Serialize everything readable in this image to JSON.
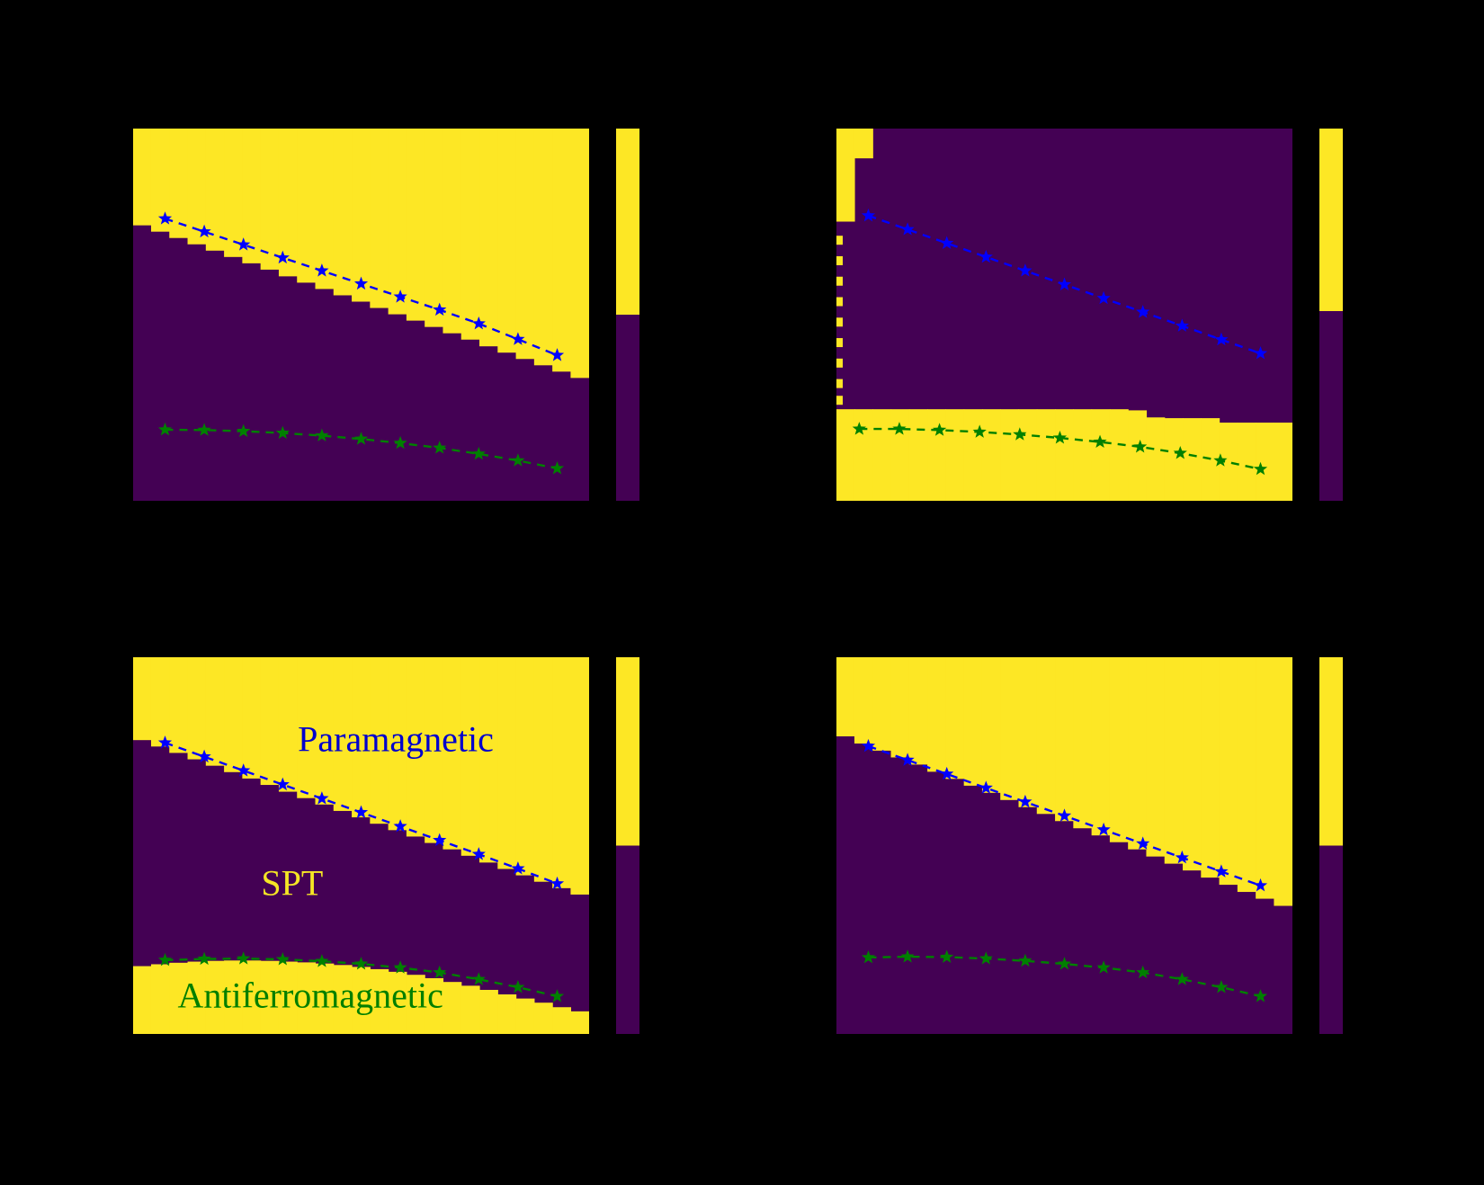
{
  "figure": {
    "background": "#000000"
  },
  "palette": {
    "region_high": "#fde725",
    "region_low": "#440154",
    "upper_line": "#0000ff",
    "lower_line": "#008000"
  },
  "chart_data": [
    {
      "id": "a",
      "position": "top-left",
      "type": "heatmap",
      "x_range": [
        0,
        1
      ],
      "y_range": [
        0,
        1
      ],
      "columns": 25,
      "colors": {
        "high": "#fde725",
        "low": "#440154"
      },
      "upper_yellow_boundary": [
        0.26,
        0.277,
        0.294,
        0.311,
        0.328,
        0.345,
        0.362,
        0.379,
        0.397,
        0.414,
        0.431,
        0.448,
        0.465,
        0.482,
        0.499,
        0.516,
        0.533,
        0.55,
        0.567,
        0.585,
        0.602,
        0.619,
        0.636,
        0.653,
        0.67
      ],
      "lower_yellow_boundary": null,
      "wedge": null,
      "edge_dashes": null,
      "upper_transition_line": {
        "color": "#0000ff",
        "marker": "star",
        "x": [
          0.07,
          0.156,
          0.242,
          0.328,
          0.414,
          0.5,
          0.586,
          0.672,
          0.758,
          0.844,
          0.93
        ],
        "y": [
          0.242,
          0.277,
          0.312,
          0.347,
          0.382,
          0.417,
          0.452,
          0.487,
          0.524,
          0.566,
          0.609
        ]
      },
      "lower_transition_line": {
        "color": "#008000",
        "marker": "star",
        "x": [
          0.07,
          0.156,
          0.242,
          0.328,
          0.414,
          0.5,
          0.586,
          0.672,
          0.758,
          0.844,
          0.93
        ],
        "y": [
          0.809,
          0.81,
          0.813,
          0.818,
          0.825,
          0.834,
          0.845,
          0.858,
          0.874,
          0.892,
          0.913
        ]
      },
      "colorbar": {
        "split": 0.5,
        "top_color": "#fde725",
        "bottom_color": "#440154"
      },
      "annotations": []
    },
    {
      "id": "b",
      "position": "top-right",
      "type": "heatmap",
      "x_range": [
        0,
        1
      ],
      "y_range": [
        0,
        1
      ],
      "columns": 25,
      "colors": {
        "high": "#fde725",
        "low": "#440154"
      },
      "upper_yellow_boundary": null,
      "lower_yellow_boundary": [
        0.754,
        0.754,
        0.754,
        0.754,
        0.754,
        0.754,
        0.754,
        0.754,
        0.754,
        0.754,
        0.754,
        0.754,
        0.754,
        0.754,
        0.754,
        0.754,
        0.757,
        0.776,
        0.778,
        0.778,
        0.778,
        0.79,
        0.79,
        0.79,
        0.79
      ],
      "wedge": [
        0.25,
        0.08,
        0,
        0,
        0,
        0,
        0,
        0,
        0,
        0,
        0,
        0,
        0,
        0,
        0,
        0,
        0,
        0,
        0,
        0,
        0,
        0,
        0,
        0,
        0
      ],
      "edge_dashes": [
        0.3,
        0.355,
        0.41,
        0.465,
        0.52,
        0.575,
        0.63,
        0.685,
        0.73
      ],
      "upper_transition_line": {
        "color": "#0000ff",
        "marker": "star",
        "x": [
          0.07,
          0.156,
          0.242,
          0.328,
          0.414,
          0.5,
          0.586,
          0.672,
          0.758,
          0.844,
          0.93
        ],
        "y": [
          0.234,
          0.271,
          0.308,
          0.345,
          0.382,
          0.419,
          0.456,
          0.493,
          0.53,
          0.567,
          0.604
        ]
      },
      "lower_transition_line": {
        "color": "#008000",
        "marker": "star",
        "x": [
          0.05,
          0.138,
          0.226,
          0.314,
          0.402,
          0.49,
          0.578,
          0.666,
          0.754,
          0.842,
          0.93
        ],
        "y": [
          0.807,
          0.807,
          0.81,
          0.815,
          0.822,
          0.831,
          0.842,
          0.855,
          0.872,
          0.892,
          0.915
        ]
      },
      "colorbar": {
        "split": 0.49,
        "top_color": "#fde725",
        "bottom_color": "#440154"
      },
      "annotations": []
    },
    {
      "id": "c",
      "position": "bottom-left",
      "type": "heatmap",
      "x_range": [
        0,
        1
      ],
      "y_range": [
        0,
        1
      ],
      "columns": 25,
      "colors": {
        "high": "#fde725",
        "low": "#440154"
      },
      "upper_yellow_boundary": [
        0.22,
        0.237,
        0.254,
        0.271,
        0.288,
        0.305,
        0.322,
        0.339,
        0.357,
        0.374,
        0.391,
        0.408,
        0.425,
        0.442,
        0.459,
        0.476,
        0.493,
        0.51,
        0.527,
        0.545,
        0.562,
        0.579,
        0.596,
        0.613,
        0.63
      ],
      "lower_yellow_boundary": [
        0.82,
        0.815,
        0.811,
        0.808,
        0.806,
        0.805,
        0.805,
        0.806,
        0.808,
        0.81,
        0.813,
        0.817,
        0.822,
        0.828,
        0.835,
        0.843,
        0.852,
        0.862,
        0.872,
        0.883,
        0.895,
        0.906,
        0.917,
        0.929,
        0.94
      ],
      "wedge": null,
      "edge_dashes": null,
      "upper_transition_line": {
        "color": "#0000ff",
        "marker": "star",
        "x": [
          0.07,
          0.156,
          0.242,
          0.328,
          0.414,
          0.5,
          0.586,
          0.672,
          0.758,
          0.844,
          0.93
        ],
        "y": [
          0.227,
          0.264,
          0.301,
          0.338,
          0.375,
          0.412,
          0.449,
          0.486,
          0.523,
          0.561,
          0.601
        ]
      },
      "lower_transition_line": {
        "color": "#008000",
        "marker": "star",
        "x": [
          0.07,
          0.156,
          0.242,
          0.328,
          0.414,
          0.5,
          0.586,
          0.672,
          0.758,
          0.844,
          0.93
        ],
        "y": [
          0.804,
          0.801,
          0.8,
          0.802,
          0.807,
          0.814,
          0.824,
          0.837,
          0.855,
          0.876,
          0.9
        ]
      },
      "colorbar": {
        "split": 0.5,
        "top_color": "#fde725",
        "bottom_color": "#440154"
      },
      "annotations": [
        {
          "id": "paramagnetic-label",
          "text": "Paramagnetic",
          "color": "#0000cd",
          "x": 0.576,
          "y": 0.217
        },
        {
          "id": "spt-label",
          "text": "SPT",
          "color": "#f5e625",
          "x": 0.349,
          "y": 0.599
        },
        {
          "id": "antiferromagnetic-label",
          "text": "Antiferromagnetic",
          "color": "#007f00",
          "x": 0.389,
          "y": 0.897
        }
      ]
    },
    {
      "id": "d",
      "position": "bottom-right",
      "type": "heatmap",
      "x_range": [
        0,
        1
      ],
      "y_range": [
        0,
        1
      ],
      "columns": 25,
      "colors": {
        "high": "#fde725",
        "low": "#440154"
      },
      "upper_yellow_boundary": [
        0.21,
        0.229,
        0.248,
        0.266,
        0.285,
        0.304,
        0.323,
        0.341,
        0.36,
        0.379,
        0.398,
        0.416,
        0.435,
        0.454,
        0.473,
        0.491,
        0.51,
        0.529,
        0.548,
        0.566,
        0.585,
        0.604,
        0.623,
        0.641,
        0.66
      ],
      "lower_yellow_boundary": null,
      "wedge": null,
      "edge_dashes": null,
      "upper_transition_line": {
        "color": "#0000ff",
        "marker": "star",
        "x": [
          0.07,
          0.156,
          0.242,
          0.328,
          0.414,
          0.5,
          0.586,
          0.672,
          0.758,
          0.844,
          0.93
        ],
        "y": [
          0.236,
          0.273,
          0.31,
          0.347,
          0.384,
          0.421,
          0.458,
          0.495,
          0.532,
          0.569,
          0.606
        ]
      },
      "lower_transition_line": {
        "color": "#008000",
        "marker": "star",
        "x": [
          0.07,
          0.156,
          0.242,
          0.328,
          0.414,
          0.5,
          0.586,
          0.672,
          0.758,
          0.844,
          0.93
        ],
        "y": [
          0.797,
          0.795,
          0.796,
          0.8,
          0.806,
          0.814,
          0.824,
          0.837,
          0.855,
          0.876,
          0.9
        ]
      },
      "colorbar": {
        "split": 0.5,
        "top_color": "#fde725",
        "bottom_color": "#440154"
      },
      "annotations": []
    }
  ]
}
